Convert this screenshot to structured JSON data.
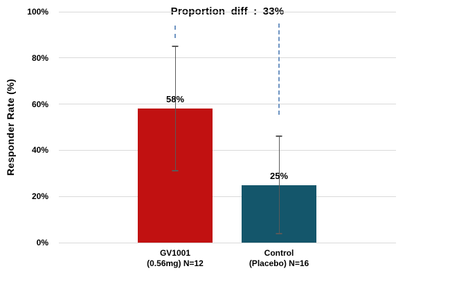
{
  "chart_data": {
    "type": "bar",
    "title": "Proportion diff : 33%",
    "ylabel": "Responder Rate (%)",
    "ylim": [
      0,
      100
    ],
    "grid": true,
    "legend": "none",
    "ytick_values": [
      0,
      20,
      40,
      60,
      80,
      100
    ],
    "ytick_labels": [
      "0%",
      "20%",
      "40%",
      "60%",
      "80%",
      "100%"
    ],
    "categories": [
      {
        "line1": "GV1001",
        "line2": "(0.56mg) N=12"
      },
      {
        "line1": "Control",
        "line2": "(Placebo) N=16"
      }
    ],
    "series": [
      {
        "name": "Responder Rate",
        "values": [
          58,
          25
        ],
        "value_labels": [
          "58%",
          "25%"
        ],
        "error_bars": [
          {
            "low": 31,
            "high": 85
          },
          {
            "low": 4,
            "high": 46
          }
        ]
      }
    ],
    "dashed_guides": [
      {
        "bar_index": 0,
        "from_pct": 94,
        "to_pct": 88.5
      },
      {
        "bar_index": 1,
        "from_pct": 95,
        "to_pct": 55.5
      }
    ],
    "colors": {
      "bars": [
        "#c11111",
        "#14566b"
      ],
      "gridline": "#d9d9d9",
      "error_bar": "#595959",
      "dashed_guide": "#6e94c2",
      "text": "#000000",
      "background": "#ffffff"
    },
    "layout": {
      "bar_center_fracs": [
        0.345,
        0.653
      ],
      "bar_width_frac": 0.22
    }
  }
}
